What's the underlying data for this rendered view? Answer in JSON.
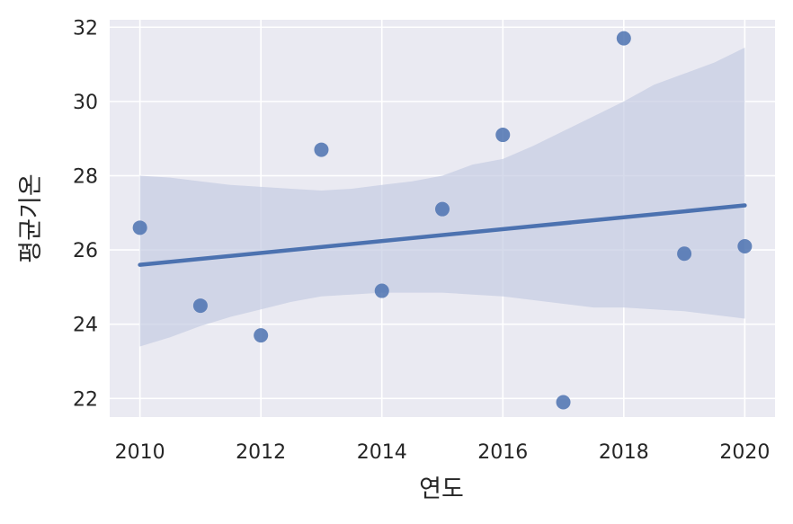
{
  "chart_data": {
    "type": "scatter",
    "title": "",
    "xlabel": "연도",
    "ylabel": "평균기온",
    "x": [
      2010,
      2011,
      2012,
      2013,
      2014,
      2015,
      2016,
      2017,
      2018,
      2019,
      2020
    ],
    "y": [
      26.6,
      24.5,
      23.7,
      28.7,
      24.9,
      27.1,
      29.1,
      21.9,
      31.7,
      25.9,
      26.1
    ],
    "xlim": [
      2009.5,
      2020.5
    ],
    "ylim": [
      21.5,
      32.2
    ],
    "xticks": [
      "2010",
      "2012",
      "2014",
      "2016",
      "2018",
      "2020"
    ],
    "yticks": [
      "22",
      "24",
      "26",
      "28",
      "30",
      "32"
    ],
    "regression_line": {
      "x": [
        2010,
        2020
      ],
      "y": [
        25.6,
        27.2
      ]
    },
    "confidence_band": {
      "x": [
        2010,
        2010.5,
        2011,
        2011.5,
        2012,
        2012.5,
        2013,
        2013.5,
        2014,
        2014.5,
        2015,
        2015.5,
        2016,
        2016.5,
        2017,
        2017.5,
        2018,
        2018.5,
        2019,
        2019.5,
        2020
      ],
      "upper": [
        28.0,
        27.95,
        27.85,
        27.75,
        27.7,
        27.65,
        27.6,
        27.65,
        27.75,
        27.85,
        28.0,
        28.3,
        28.45,
        28.8,
        29.2,
        29.6,
        30.0,
        30.45,
        30.75,
        31.05,
        31.45
      ],
      "lower": [
        23.4,
        23.65,
        23.95,
        24.2,
        24.4,
        24.6,
        24.75,
        24.8,
        24.85,
        24.85,
        24.85,
        24.8,
        24.75,
        24.65,
        24.55,
        24.45,
        24.45,
        24.4,
        24.35,
        24.25,
        24.15
      ]
    },
    "grid": true,
    "colors": {
      "background": "#eaeaf2",
      "grid": "#ffffff",
      "points": "#4c72b0",
      "line": "#4c72b0",
      "band": "#c5cce3"
    }
  }
}
